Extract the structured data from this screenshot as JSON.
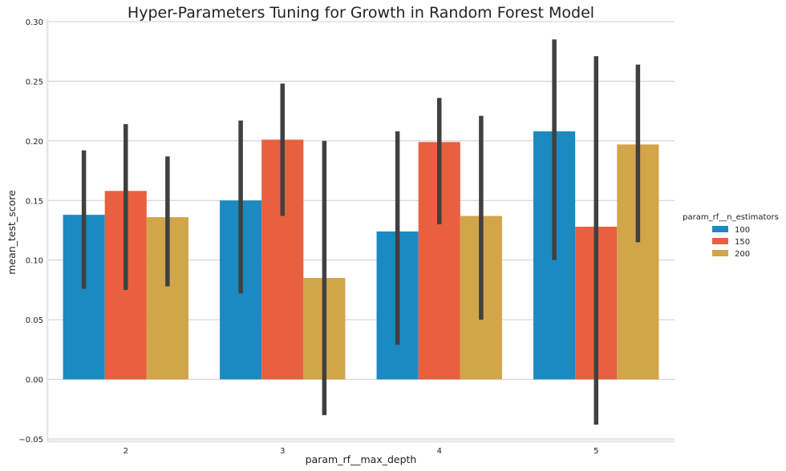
{
  "chart_data": {
    "type": "bar",
    "title": "Hyper-Parameters Tuning for Growth in Random Forest Model",
    "xlabel": "param_rf__max_depth",
    "ylabel": "mean_test_score",
    "categories": [
      "2",
      "3",
      "4",
      "5"
    ],
    "ylim": [
      -0.052,
      0.302
    ],
    "yticks": [
      -0.05,
      0.0,
      0.05,
      0.1,
      0.15,
      0.2,
      0.25,
      0.3
    ],
    "ytick_labels": [
      "−0.05",
      "0.00",
      "0.05",
      "0.10",
      "0.15",
      "0.20",
      "0.25",
      "0.30"
    ],
    "grid": "horizontal",
    "legend": {
      "title": "param_rf__n_estimators",
      "placement": "right"
    },
    "series": [
      {
        "name": "100",
        "color": "#1b8ac2",
        "values": [
          0.138,
          0.15,
          0.124,
          0.208
        ],
        "err_low": [
          0.076,
          0.072,
          0.029,
          0.1
        ],
        "err_high": [
          0.192,
          0.217,
          0.208,
          0.285
        ]
      },
      {
        "name": "150",
        "color": "#e8603f",
        "values": [
          0.158,
          0.201,
          0.199,
          0.128
        ],
        "err_low": [
          0.075,
          0.137,
          0.13,
          -0.038
        ],
        "err_high": [
          0.214,
          0.248,
          0.236,
          0.271
        ]
      },
      {
        "name": "200",
        "color": "#d2a54a",
        "values": [
          0.136,
          0.085,
          0.137,
          0.197
        ],
        "err_low": [
          0.078,
          -0.03,
          0.05,
          0.115
        ],
        "err_high": [
          0.187,
          0.2,
          0.221,
          0.264
        ]
      }
    ],
    "errorbar_color": "#404040"
  }
}
